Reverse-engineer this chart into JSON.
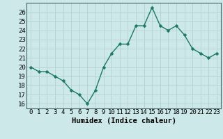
{
  "x": [
    0,
    1,
    2,
    3,
    4,
    5,
    6,
    7,
    8,
    9,
    10,
    11,
    12,
    13,
    14,
    15,
    16,
    17,
    18,
    19,
    20,
    21,
    22,
    23
  ],
  "y": [
    20,
    19.5,
    19.5,
    19,
    18.5,
    17.5,
    17,
    16,
    17.5,
    20,
    21.5,
    22.5,
    22.5,
    24.5,
    24.5,
    26.5,
    24.5,
    24,
    24.5,
    23.5,
    22,
    21.5,
    21,
    21.5
  ],
  "line_color": "#1a7a5e",
  "marker_color": "#1a7a5e",
  "bg_color": "#cce8e8",
  "grid_color": "#b0cccc",
  "xlabel": "Humidex (Indice chaleur)",
  "xlim": [
    -0.5,
    23.5
  ],
  "ylim": [
    15.5,
    27
  ],
  "yticks": [
    16,
    17,
    18,
    19,
    20,
    21,
    22,
    23,
    24,
    25,
    26
  ],
  "xticks": [
    0,
    1,
    2,
    3,
    4,
    5,
    6,
    7,
    8,
    9,
    10,
    11,
    12,
    13,
    14,
    15,
    16,
    17,
    18,
    19,
    20,
    21,
    22,
    23
  ],
  "tick_fontsize": 6.5,
  "xlabel_fontsize": 7.5,
  "marker_size": 2.5,
  "line_width": 1.0
}
